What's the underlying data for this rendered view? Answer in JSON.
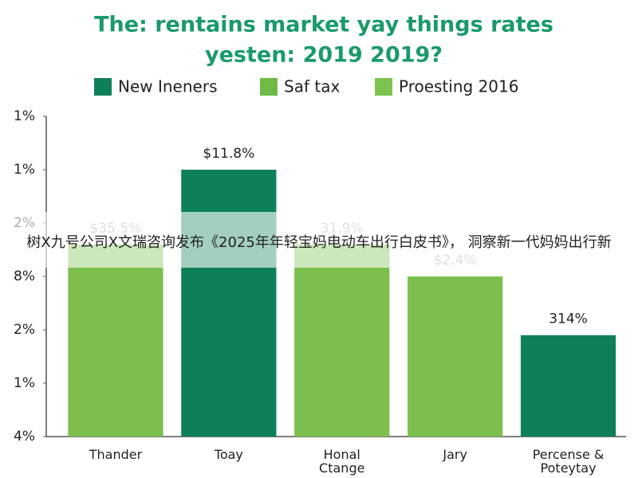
{
  "chart_data": {
    "type": "bar",
    "title": "The: rentains market yay things rates",
    "subtitle": "yesten: 2019 2019?",
    "legend": [
      {
        "name": "New Ineners",
        "color": "#0e8058"
      },
      {
        "name": "Saf tax",
        "color": "#6dba45"
      },
      {
        "name": "Proesting 2016",
        "color": "#7cc34f"
      }
    ],
    "categories": [
      "Thander",
      "Toay",
      "Honal\nCtange",
      "Jary",
      "Percense &\nPoteytay"
    ],
    "values": [
      3.6,
      5.0,
      3.6,
      3.0,
      1.9
    ],
    "colors": [
      "#7cbf4f",
      "#0e8058",
      "#7cbf4f",
      "#7cbf4f",
      "#0e8058"
    ],
    "bar_annotations": [
      "$35.5%",
      "$11.8%",
      "31.9%",
      "$2.4%",
      "314%"
    ],
    "ylim": [
      0,
      6
    ],
    "yticks": [
      {
        "value": 0,
        "label": "4%"
      },
      {
        "value": 1,
        "label": "1%"
      },
      {
        "value": 2,
        "label": "2%"
      },
      {
        "value": 3,
        "label": "8%"
      },
      {
        "value": 4,
        "label": "2%"
      },
      {
        "value": 5,
        "label": "1%"
      },
      {
        "value": 6,
        "label": "1%"
      }
    ],
    "grid": false
  },
  "banner": "树X九号公司X文瑞咨询发布《2025年年轻宝妈电动车出行白皮书》， 洞察新一代妈妈出行新"
}
